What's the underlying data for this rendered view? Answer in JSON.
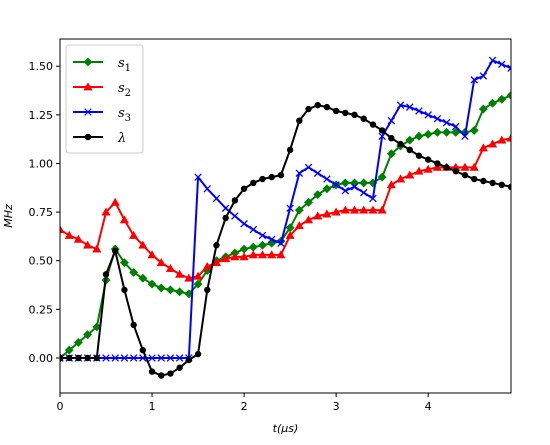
{
  "chart_data": {
    "type": "line",
    "xlabel": "t(μs)",
    "ylabel": "MHz",
    "xlim": [
      0,
      4.9
    ],
    "ylim": [
      -0.18,
      1.64
    ],
    "grid": false,
    "legend_position": "top-left",
    "x_ticks": [
      0,
      1,
      2,
      3,
      4
    ],
    "x_tick_labels": [
      "0",
      "1",
      "2",
      "3",
      "4"
    ],
    "y_ticks": [
      0,
      0.25,
      0.5,
      0.75,
      1.0,
      1.25,
      1.5
    ],
    "y_tick_labels": [
      "0.00",
      "0.25",
      "0.50",
      "0.75",
      "1.00",
      "1.25",
      "1.50"
    ],
    "series": [
      {
        "name": "s1",
        "legend_base": "s",
        "legend_sub": "1",
        "color": "#008000",
        "marker": "diamond",
        "x": [
          0,
          0.1,
          0.2,
          0.3,
          0.4,
          0.5,
          0.6,
          0.7,
          0.8,
          0.9,
          1.0,
          1.1,
          1.2,
          1.3,
          1.4,
          1.5,
          1.6,
          1.7,
          1.8,
          1.9,
          2.0,
          2.1,
          2.2,
          2.3,
          2.4,
          2.5,
          2.6,
          2.7,
          2.8,
          2.9,
          3.0,
          3.1,
          3.2,
          3.3,
          3.4,
          3.5,
          3.6,
          3.7,
          3.8,
          3.9,
          4.0,
          4.1,
          4.2,
          4.3,
          4.4,
          4.5,
          4.6,
          4.7,
          4.8,
          4.9
        ],
        "y": [
          0,
          0.04,
          0.08,
          0.12,
          0.16,
          0.4,
          0.56,
          0.49,
          0.44,
          0.41,
          0.38,
          0.36,
          0.35,
          0.34,
          0.33,
          0.38,
          0.45,
          0.5,
          0.52,
          0.54,
          0.56,
          0.57,
          0.58,
          0.59,
          0.6,
          0.67,
          0.76,
          0.8,
          0.84,
          0.87,
          0.89,
          0.9,
          0.9,
          0.9,
          0.9,
          0.93,
          1.05,
          1.09,
          1.12,
          1.14,
          1.15,
          1.16,
          1.16,
          1.16,
          1.16,
          1.17,
          1.28,
          1.31,
          1.33,
          1.35
        ]
      },
      {
        "name": "s2",
        "legend_base": "s",
        "legend_sub": "2",
        "color": "#ff0000",
        "marker": "triangle",
        "x": [
          0,
          0.1,
          0.2,
          0.3,
          0.4,
          0.5,
          0.6,
          0.7,
          0.8,
          0.9,
          1.0,
          1.1,
          1.2,
          1.3,
          1.4,
          1.5,
          1.6,
          1.7,
          1.8,
          1.9,
          2.0,
          2.1,
          2.2,
          2.3,
          2.4,
          2.5,
          2.6,
          2.7,
          2.8,
          2.9,
          3.0,
          3.1,
          3.2,
          3.3,
          3.4,
          3.5,
          3.6,
          3.7,
          3.8,
          3.9,
          4.0,
          4.1,
          4.2,
          4.3,
          4.4,
          4.5,
          4.6,
          4.7,
          4.8,
          4.9
        ],
        "y": [
          0.66,
          0.63,
          0.61,
          0.58,
          0.56,
          0.75,
          0.8,
          0.71,
          0.63,
          0.58,
          0.53,
          0.49,
          0.46,
          0.43,
          0.41,
          0.42,
          0.47,
          0.49,
          0.51,
          0.52,
          0.52,
          0.53,
          0.53,
          0.53,
          0.53,
          0.63,
          0.68,
          0.71,
          0.73,
          0.74,
          0.75,
          0.76,
          0.76,
          0.76,
          0.76,
          0.76,
          0.89,
          0.92,
          0.94,
          0.96,
          0.97,
          0.98,
          0.98,
          0.98,
          0.98,
          0.98,
          1.08,
          1.1,
          1.12,
          1.13
        ]
      },
      {
        "name": "s3",
        "legend_base": "s",
        "legend_sub": "3",
        "color": "#0000ff",
        "marker": "x",
        "x": [
          0,
          0.1,
          0.2,
          0.3,
          0.4,
          0.5,
          0.6,
          0.7,
          0.8,
          0.9,
          1.0,
          1.1,
          1.2,
          1.3,
          1.4,
          1.5,
          1.6,
          1.7,
          1.8,
          1.9,
          2.0,
          2.1,
          2.2,
          2.3,
          2.4,
          2.5,
          2.6,
          2.7,
          2.8,
          2.9,
          3.0,
          3.1,
          3.2,
          3.3,
          3.4,
          3.5,
          3.6,
          3.7,
          3.8,
          3.9,
          4.0,
          4.1,
          4.2,
          4.3,
          4.4,
          4.5,
          4.6,
          4.7,
          4.8,
          4.9
        ],
        "y": [
          0,
          0,
          0,
          0,
          0,
          0,
          0,
          0,
          0,
          0,
          0,
          0,
          0,
          0,
          0,
          0.93,
          0.87,
          0.82,
          0.77,
          0.73,
          0.69,
          0.66,
          0.63,
          0.61,
          0.59,
          0.77,
          0.95,
          0.98,
          0.95,
          0.92,
          0.89,
          0.86,
          0.88,
          0.85,
          0.82,
          1.14,
          1.22,
          1.3,
          1.29,
          1.27,
          1.25,
          1.23,
          1.21,
          1.19,
          1.14,
          1.43,
          1.45,
          1.53,
          1.51,
          1.49
        ]
      },
      {
        "name": "λ",
        "legend_base": "λ",
        "legend_sub": "",
        "color": "#000000",
        "marker": "circle",
        "x": [
          0,
          0.1,
          0.2,
          0.3,
          0.4,
          0.5,
          0.6,
          0.7,
          0.8,
          0.9,
          1.0,
          1.1,
          1.2,
          1.3,
          1.4,
          1.5,
          1.6,
          1.7,
          1.8,
          1.9,
          2.0,
          2.1,
          2.2,
          2.3,
          2.4,
          2.5,
          2.6,
          2.7,
          2.8,
          2.9,
          3.0,
          3.1,
          3.2,
          3.3,
          3.4,
          3.5,
          3.6,
          3.7,
          3.8,
          3.9,
          4.0,
          4.1,
          4.2,
          4.3,
          4.4,
          4.5,
          4.6,
          4.7,
          4.8,
          4.9
        ],
        "y": [
          0,
          0,
          0,
          0,
          0,
          0.43,
          0.55,
          0.35,
          0.17,
          0.04,
          -0.07,
          -0.09,
          -0.08,
          -0.05,
          -0.01,
          0.02,
          0.35,
          0.58,
          0.72,
          0.81,
          0.87,
          0.9,
          0.92,
          0.93,
          0.94,
          1.07,
          1.22,
          1.28,
          1.3,
          1.29,
          1.27,
          1.26,
          1.25,
          1.23,
          1.2,
          1.17,
          1.13,
          1.1,
          1.07,
          1.04,
          1.02,
          1.0,
          0.98,
          0.96,
          0.94,
          0.92,
          0.91,
          0.9,
          0.89,
          0.88
        ]
      }
    ]
  }
}
